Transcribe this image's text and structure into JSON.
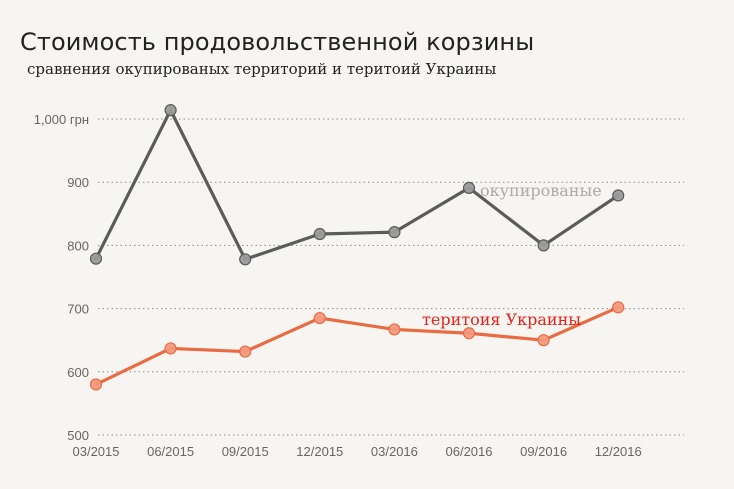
{
  "chart_data": {
    "type": "line",
    "title": "Стоимость продовольственной корзины",
    "subtitle": "сравнения окупированых территорий и теритоий Украины",
    "categories": [
      "03/2015",
      "06/2015",
      "09/2015",
      "12/2015",
      "03/2016",
      "06/2016",
      "09/2016",
      "12/2016"
    ],
    "yticks": [
      {
        "value": 1000,
        "label": "1,000 грн"
      },
      {
        "value": 900,
        "label": "900"
      },
      {
        "value": 800,
        "label": "800"
      },
      {
        "value": 700,
        "label": "700"
      },
      {
        "value": 600,
        "label": "600"
      },
      {
        "value": 500,
        "label": "500"
      }
    ],
    "ylim": [
      500,
      1000
    ],
    "grid": true,
    "series": [
      {
        "name": "окупированые",
        "color": "#5b5b5b",
        "marker_color": "#9a9a9a",
        "label_color": "#aaaaaa",
        "values": [
          779,
          1014,
          778,
          818,
          821,
          891,
          800,
          879
        ]
      },
      {
        "name": "теритоия Украины",
        "color": "#ea6a42",
        "marker_color": "#f29a7e",
        "label_color": "#e2231a",
        "values": [
          580,
          637,
          632,
          685,
          667,
          661,
          650,
          702
        ]
      }
    ]
  }
}
